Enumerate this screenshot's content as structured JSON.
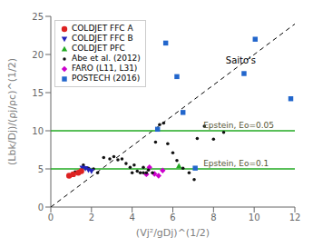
{
  "chart_data": {
    "type": "scatter",
    "xlabel": "(Vj²/gDj)^(1/2)",
    "ylabel": "(Lbk/Dj)/(ρj/ρc)^(1/2)",
    "xlim": [
      0,
      12
    ],
    "ylim": [
      0,
      25
    ],
    "xticks": [
      0,
      2,
      4,
      6,
      8,
      10,
      12
    ],
    "yticks": [
      0,
      5,
      10,
      15,
      20,
      25
    ],
    "grid": false,
    "legend": "upper left",
    "series": [
      {
        "name": "COLDJET FFC A",
        "color": "#dd2222",
        "marker": "circle",
        "x": [
          0.9,
          1.1,
          1.35,
          1.5
        ],
        "values": [
          4.1,
          4.3,
          4.5,
          4.7
        ]
      },
      {
        "name": "COLDJET FFC B",
        "color": "#2222bb",
        "marker": "triangle-down",
        "x": [
          1.55,
          1.7,
          1.85,
          2.0
        ],
        "values": [
          5.1,
          5.05,
          4.85,
          4.7
        ]
      },
      {
        "name": "COLDJET PFC",
        "color": "#22aa22",
        "marker": "triangle",
        "x": [
          6.3
        ],
        "values": [
          5.4
        ]
      },
      {
        "name": "Abe et al. (2012)",
        "color": "#111111",
        "marker": "point",
        "x": [
          1.0,
          1.2,
          1.6,
          1.85,
          2.1,
          2.3,
          2.6,
          2.9,
          3.1,
          3.3,
          3.5,
          3.7,
          3.9,
          4.0,
          4.1,
          4.25,
          4.4,
          4.55,
          4.7,
          4.8,
          5.0,
          5.15,
          5.35,
          5.55,
          5.75,
          6.0,
          6.2,
          6.5,
          6.8,
          7.05,
          7.2,
          7.55,
          8.0,
          8.5,
          4.55
        ],
        "values": [
          4.2,
          4.6,
          5.5,
          5.1,
          5.0,
          4.5,
          6.5,
          6.3,
          6.6,
          6.2,
          6.3,
          5.7,
          5.2,
          4.5,
          5.5,
          4.7,
          4.5,
          5.2,
          4.5,
          4.85,
          4.5,
          8.5,
          10.8,
          11.0,
          8.3,
          7.1,
          6.1,
          5.1,
          4.5,
          3.6,
          9.0,
          10.6,
          8.9,
          9.8,
          4.5
        ]
      },
      {
        "name": "FARO (L11, L31)",
        "color": "#cc00cc",
        "marker": "diamond",
        "x": [
          4.85,
          5.1,
          5.3,
          5.5,
          4.7
        ],
        "values": [
          5.2,
          4.35,
          4.1,
          4.8,
          4.3
        ]
      },
      {
        "name": "POSTECH (2016)",
        "color": "#2266cc",
        "marker": "square",
        "x": [
          5.25,
          5.65,
          6.2,
          6.5,
          7.1,
          9.5,
          10.05,
          11.8
        ],
        "values": [
          10.2,
          21.5,
          17.1,
          12.4,
          5.1,
          17.5,
          22.0,
          14.2
        ]
      },
      {
        "type": "line",
        "color": "#000000",
        "line_style": "dashed",
        "x": [
          0,
          12
        ],
        "values": [
          0,
          24
        ]
      },
      {
        "type": "line",
        "color": "#22aa22",
        "line_style": "solid",
        "x": [
          0,
          12
        ],
        "values": [
          10.0,
          10.0
        ]
      },
      {
        "type": "line",
        "color": "#22aa22",
        "line_style": "solid",
        "x": [
          0,
          12
        ],
        "values": [
          5.0,
          5.0
        ]
      }
    ],
    "annotations": [
      {
        "text": "Saito's",
        "x": 8.6,
        "y": 18.8,
        "color": "#000000"
      },
      {
        "text": "Epstein, Eo=0.05",
        "x": 7.5,
        "y": 10.35,
        "color": "#555533"
      },
      {
        "text": "Epstein, Eo=0.1",
        "x": 7.5,
        "y": 5.35,
        "color": "#555533"
      }
    ]
  }
}
